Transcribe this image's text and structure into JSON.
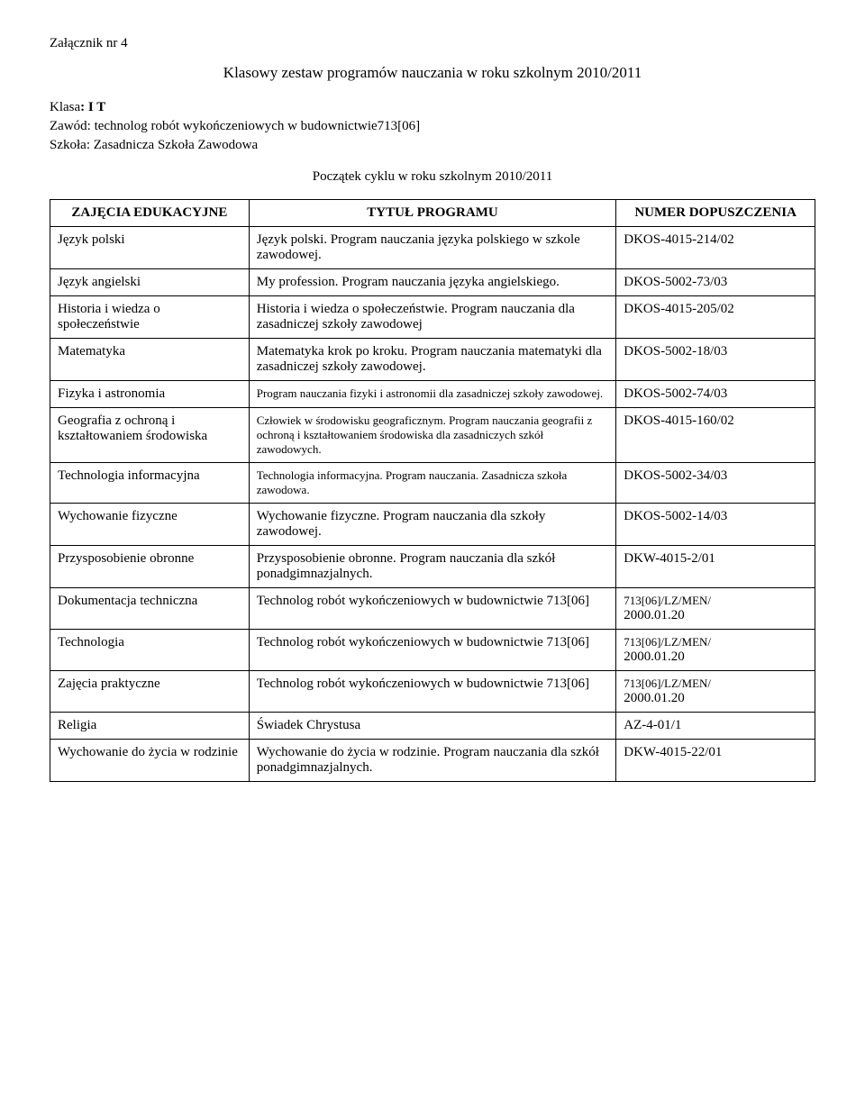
{
  "attachment": "Załącznik nr 4",
  "pageTitle": "Klasowy zestaw programów nauczania w roku szkolnym 2010/2011",
  "classLabel": "Klasa",
  "classValue": ": I T",
  "professionLabel": "Zawód: technolog robót wykończeniowych w budownictwie713[06]",
  "schoolLabel": "Szkoła: Zasadnicza Szkoła Zawodowa",
  "cycleStart": "Początek cyklu w roku szkolnym 2010/2011",
  "headers": {
    "subject": "ZAJĘCIA EDUKACYJNE",
    "title": "TYTUŁ PROGRAMU",
    "number": "NUMER DOPUSZCZENIA"
  },
  "rows": [
    {
      "subject": "Język polski",
      "title": "Język polski. Program nauczania języka polskiego w szkole zawodowej.",
      "number": "DKOS-4015-214/02"
    },
    {
      "subject": "Język angielski",
      "title": "My profession. Program nauczania języka angielskiego.",
      "number": "DKOS-5002-73/03"
    },
    {
      "subject": "Historia i wiedza o społeczeństwie",
      "title": "Historia i wiedza o społeczeństwie. Program nauczania dla zasadniczej szkoły zawodowej",
      "number": "DKOS-4015-205/02"
    },
    {
      "subject": "Matematyka",
      "title": "Matematyka krok po kroku. Program nauczania matematyki dla zasadniczej szkoły zawodowej.",
      "number": "DKOS-5002-18/03"
    },
    {
      "subject": "Fizyka i astronomia",
      "title": "Program nauczania fizyki i astronomii dla zasadniczej szkoły zawodowej.",
      "number": "DKOS-5002-74/03",
      "small": true
    },
    {
      "subject": "Geografia z ochroną i kształtowaniem środowiska",
      "title": "Człowiek w środowisku geograficznym. Program nauczania geografii z ochroną i kształtowaniem środowiska dla zasadniczych szkół zawodowych.",
      "number": "DKOS-4015-160/02",
      "small": true
    },
    {
      "subject": "Technologia informacyjna",
      "title": "Technologia informacyjna. Program nauczania. Zasadnicza szkoła zawodowa.",
      "number": "DKOS-5002-34/03",
      "small": true
    },
    {
      "subject": "Wychowanie fizyczne",
      "title": "Wychowanie fizyczne. Program nauczania dla szkoły zawodowej.",
      "number": "DKOS-5002-14/03"
    },
    {
      "subject": "Przysposobienie obronne",
      "title": "Przysposobienie obronne. Program nauczania dla szkół ponadgimnazjalnych.",
      "number": "DKW-4015-2/01"
    },
    {
      "subject": "Dokumentacja techniczna",
      "title": "Technolog robót wykończeniowych w budownictwie 713[06]",
      "number": "713[06]/LZ/MEN/\n2000.01.20",
      "multiline": true
    },
    {
      "subject": "Technologia",
      "title": "Technolog robót wykończeniowych w budownictwie 713[06]",
      "number": "713[06]/LZ/MEN/\n2000.01.20",
      "multiline": true
    },
    {
      "subject": "Zajęcia praktyczne",
      "title": "Technolog robót wykończeniowych w budownictwie 713[06]",
      "number": "713[06]/LZ/MEN/\n2000.01.20",
      "multiline": true
    },
    {
      "subject": "Religia",
      "title": "Świadek Chrystusa",
      "number": "AZ-4-01/1"
    },
    {
      "subject": "Wychowanie do życia w rodzinie",
      "title": "Wychowanie do życia w rodzinie. Program nauczania dla szkół ponadgimnazjalnych.",
      "number": "DKW-4015-22/01"
    }
  ]
}
